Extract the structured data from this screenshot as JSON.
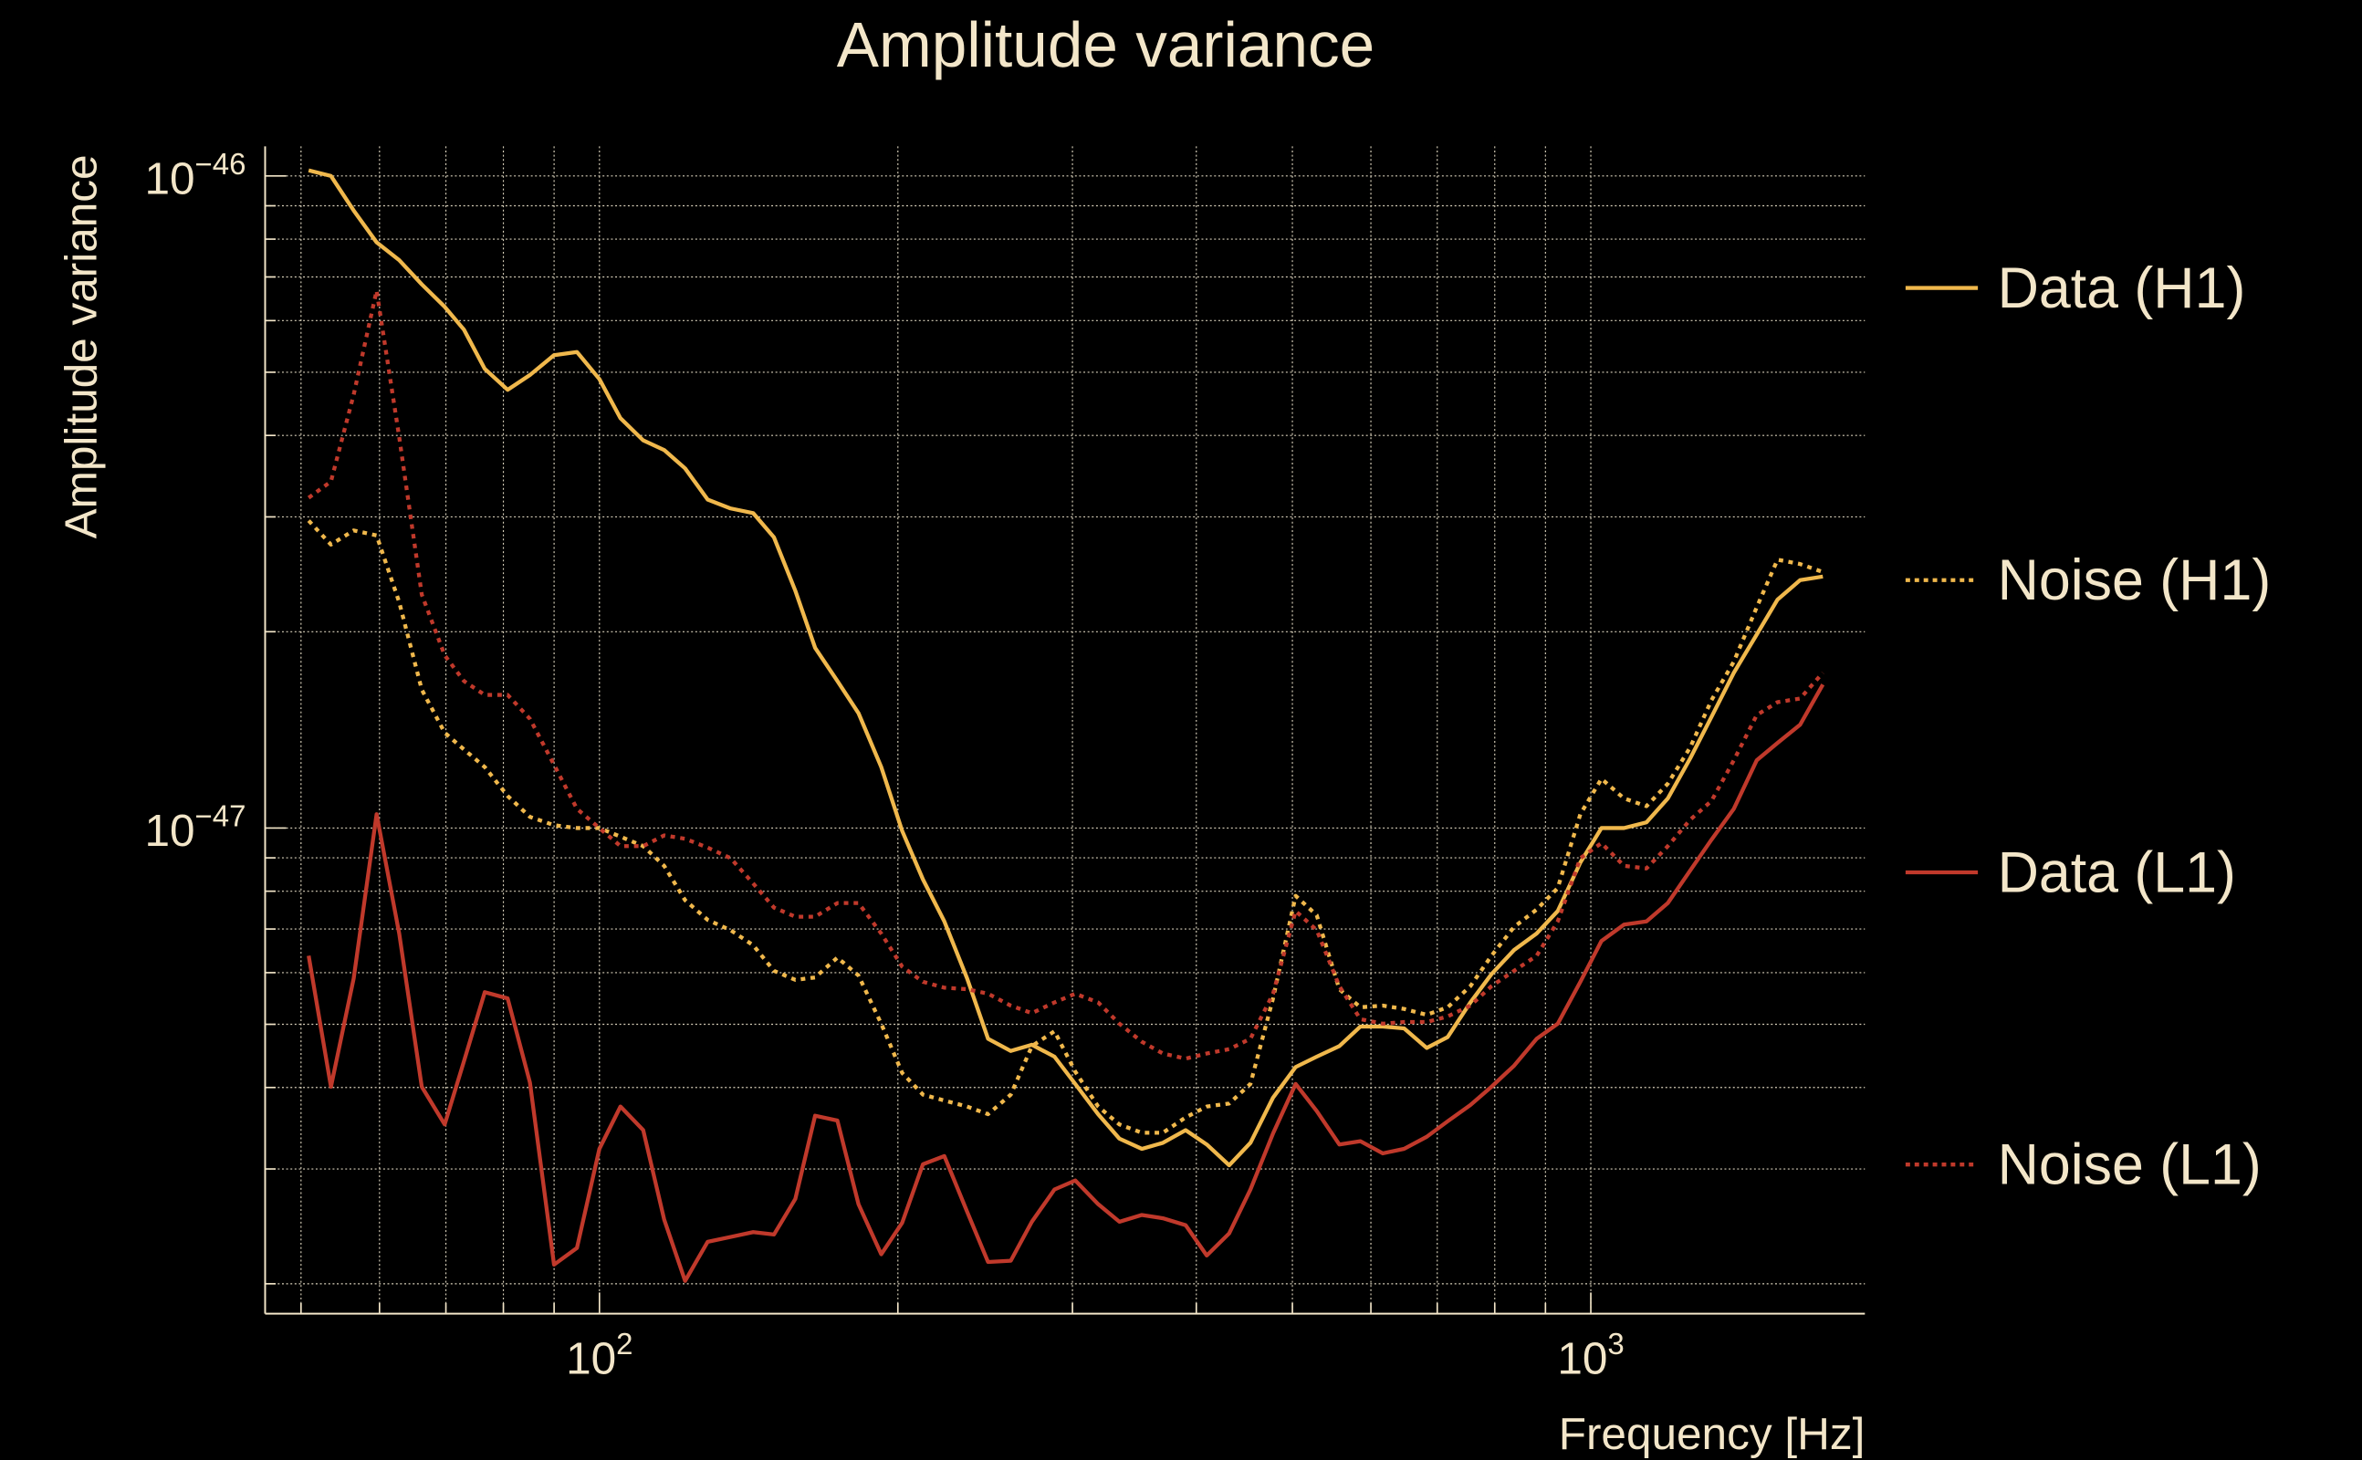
{
  "chart_data": {
    "type": "line",
    "title": "Amplitude variance",
    "xlabel": "Frequency [Hz]",
    "ylabel": "Amplitude variance",
    "xscale": "log",
    "yscale": "log",
    "xlim": [
      46,
      1890
    ],
    "ylim": [
      1.8e-48,
      1.11e-46
    ],
    "grid": true,
    "legend": {
      "placement": "right"
    },
    "x_ticks": [
      {
        "value": 100,
        "base": "10",
        "exp": "2"
      },
      {
        "value": 1000,
        "base": "10",
        "exp": "3"
      }
    ],
    "y_ticks": [
      {
        "value": 1e-46,
        "base": "10",
        "exp": "−46"
      },
      {
        "value": 1e-47,
        "base": "10",
        "exp": "−47"
      }
    ],
    "x": [
      50.9,
      53.6,
      56.5,
      59.6,
      62.8,
      66.2,
      69.8,
      73.0,
      76.6,
      80.8,
      85.1,
      90.0,
      94.9,
      100,
      105,
      110.7,
      116.2,
      122,
      128.6,
      135.6,
      142.9,
      150,
      157.6,
      165,
      173.8,
      182.5,
      192.4,
      202,
      212,
      222.8,
      234.9,
      246.6,
      260,
      273,
      287.7,
      302,
      318.4,
      334.5,
      352.5,
      370.2,
      390.2,
      409.8,
      431.8,
      453.6,
      478,
      503.7,
      529,
      557.5,
      585.5,
      617,
      648,
      683,
      717,
      756,
      794,
      836.6,
      881.7,
      926,
      976,
      1025,
      1080,
      1138,
      1196,
      1260,
      1323,
      1394,
      1470,
      1543,
      1626,
      1714
    ],
    "series": [
      {
        "name": "Data (H1)",
        "color": "#f0b84c",
        "style": "solid",
        "values": [
          1.02e-46,
          1e-46,
          8.85e-47,
          7.91e-47,
          7.43e-47,
          6.82e-47,
          6.3e-47,
          5.81e-47,
          5.06e-47,
          4.7e-47,
          4.95e-47,
          5.31e-47,
          5.37e-47,
          4.88e-47,
          4.25e-47,
          3.93e-47,
          3.8e-47,
          3.56e-47,
          3.19e-47,
          3.09e-47,
          3.04e-47,
          2.79e-47,
          2.31e-47,
          1.89e-47,
          1.68e-47,
          1.5e-47,
          1.24e-47,
          9.9e-48,
          8.34e-48,
          7.19e-48,
          5.88e-48,
          4.75e-48,
          4.55e-48,
          4.65e-48,
          4.46e-48,
          4.05e-48,
          3.64e-48,
          3.34e-48,
          3.22e-48,
          3.29e-48,
          3.44e-48,
          3.27e-48,
          3.04e-48,
          3.29e-48,
          3.86e-48,
          4.3e-48,
          4.46e-48,
          4.63e-48,
          4.96e-48,
          4.96e-48,
          4.93e-48,
          4.6e-48,
          4.78e-48,
          5.4e-48,
          5.97e-48,
          6.5e-48,
          6.89e-48,
          7.46e-48,
          8.85e-48,
          1e-47,
          1e-47,
          1.02e-47,
          1.11e-47,
          1.28e-47,
          1.48e-47,
          1.73e-47,
          1.98e-47,
          2.24e-47,
          2.4e-47,
          2.43e-47
        ]
      },
      {
        "name": "Noise (H1)",
        "color": "#f0b84c",
        "style": "dotted",
        "values": [
          2.96e-47,
          2.72e-47,
          2.86e-47,
          2.81e-47,
          2.22e-47,
          1.63e-47,
          1.4e-47,
          1.32e-47,
          1.24e-47,
          1.12e-47,
          1.04e-47,
          1.01e-47,
          1e-47,
          1e-47,
          9.7e-48,
          9.38e-48,
          8.75e-48,
          7.75e-48,
          7.23e-48,
          6.97e-48,
          6.61e-48,
          6.04e-48,
          5.85e-48,
          5.9e-48,
          6.33e-48,
          5.94e-48,
          5.01e-48,
          4.21e-48,
          3.9e-48,
          3.82e-48,
          3.74e-48,
          3.64e-48,
          3.9e-48,
          4.63e-48,
          4.88e-48,
          4.23e-48,
          3.74e-48,
          3.51e-48,
          3.41e-48,
          3.41e-48,
          3.6e-48,
          3.74e-48,
          3.78e-48,
          4.05e-48,
          5.48e-48,
          7.87e-48,
          7.35e-48,
          5.66e-48,
          5.31e-48,
          5.34e-48,
          5.28e-48,
          5.17e-48,
          5.31e-48,
          5.72e-48,
          6.37e-48,
          7.05e-48,
          7.5e-48,
          8.09e-48,
          1.05e-47,
          1.19e-47,
          1.11e-47,
          1.08e-47,
          1.17e-47,
          1.33e-47,
          1.57e-47,
          1.8e-47,
          2.18e-47,
          2.58e-47,
          2.54e-47,
          2.47e-47
        ]
      },
      {
        "name": "Data (L1)",
        "color": "#c0392b",
        "style": "solid",
        "values": [
          6.37e-48,
          4.01e-48,
          5.88e-48,
          1.05e-47,
          6.89e-48,
          4.01e-48,
          3.51e-48,
          4.39e-48,
          5.6e-48,
          5.48e-48,
          4.07e-48,
          2.14e-48,
          2.27e-48,
          3.22e-48,
          3.74e-48,
          3.44e-48,
          2.51e-48,
          2.02e-48,
          2.32e-48,
          2.36e-48,
          2.4e-48,
          2.38e-48,
          2.7e-48,
          3.62e-48,
          3.56e-48,
          2.65e-48,
          2.22e-48,
          2.48e-48,
          3.05e-48,
          3.14e-48,
          2.58e-48,
          2.16e-48,
          2.17e-48,
          2.49e-48,
          2.79e-48,
          2.88e-48,
          2.65e-48,
          2.49e-48,
          2.55e-48,
          2.52e-48,
          2.46e-48,
          2.21e-48,
          2.39e-48,
          2.79e-48,
          3.4e-48,
          4.05e-48,
          3.68e-48,
          3.27e-48,
          3.31e-48,
          3.17e-48,
          3.22e-48,
          3.36e-48,
          3.55e-48,
          3.76e-48,
          4.01e-48,
          4.32e-48,
          4.75e-48,
          5.01e-48,
          5.81e-48,
          6.71e-48,
          7.11e-48,
          7.19e-48,
          7.67e-48,
          8.61e-48,
          9.59e-48,
          1.07e-47,
          1.27e-47,
          1.35e-47,
          1.44e-47,
          1.66e-47
        ]
      },
      {
        "name": "Noise (L1)",
        "color": "#c0392b",
        "style": "dotted",
        "values": [
          3.21e-47,
          3.4e-47,
          4.62e-47,
          6.67e-47,
          3.98e-47,
          2.28e-47,
          1.84e-47,
          1.68e-47,
          1.6e-47,
          1.6e-47,
          1.47e-47,
          1.25e-47,
          1.07e-47,
          1e-47,
          9.38e-48,
          9.38e-48,
          9.74e-48,
          9.63e-48,
          9.33e-48,
          8.99e-48,
          8.22e-48,
          7.55e-48,
          7.31e-48,
          7.31e-48,
          7.67e-48,
          7.67e-48,
          6.89e-48,
          6.13e-48,
          5.81e-48,
          5.69e-48,
          5.66e-48,
          5.57e-48,
          5.34e-48,
          5.2e-48,
          5.4e-48,
          5.57e-48,
          5.4e-48,
          5.01e-48,
          4.7e-48,
          4.51e-48,
          4.43e-48,
          4.51e-48,
          4.58e-48,
          4.75e-48,
          5.57e-48,
          7.46e-48,
          6.97e-48,
          5.72e-48,
          5.09e-48,
          5.01e-48,
          5.04e-48,
          5.04e-48,
          5.14e-48,
          5.34e-48,
          5.72e-48,
          6.04e-48,
          6.37e-48,
          7.19e-48,
          8.99e-48,
          9.48e-48,
          8.75e-48,
          8.67e-48,
          9.38e-48,
          1.03e-47,
          1.1e-47,
          1.27e-47,
          1.49e-47,
          1.56e-47,
          1.58e-47,
          1.73e-47
        ]
      }
    ]
  }
}
